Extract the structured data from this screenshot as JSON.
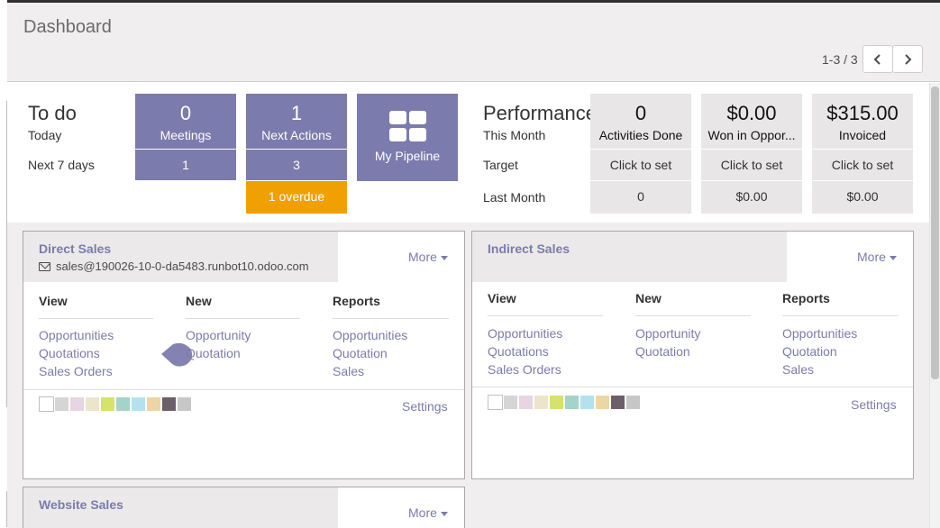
{
  "header": {
    "title": "Dashboard",
    "pager": "1-3 / 3",
    "prev_icon": "chevron-left-icon",
    "next_icon": "chevron-right-icon"
  },
  "todo": {
    "title": "To do",
    "today_label": "Today",
    "next7_label": "Next 7 days",
    "meetings": {
      "count": "0",
      "label": "Meetings",
      "next7": "1"
    },
    "next_actions": {
      "count": "1",
      "label": "Next Actions",
      "next7": "3"
    },
    "overdue": "1 overdue",
    "pipeline": {
      "label": "My Pipeline",
      "icon": "grid-icon"
    }
  },
  "performance": {
    "title": "Performance",
    "this_month_label": "This Month",
    "target_label": "Target",
    "last_month_label": "Last Month",
    "kpis": [
      {
        "value": "0",
        "label": "Activities Done",
        "target": "Click to set",
        "last_month": "0"
      },
      {
        "value": "$0.00",
        "label": "Won in Oppor...",
        "target": "Click to set",
        "last_month": "$0.00"
      },
      {
        "value": "$315.00",
        "label": "Invoiced",
        "target": "Click to set",
        "last_month": "$0.00"
      }
    ]
  },
  "cards": {
    "direct": {
      "name": "Direct Sales",
      "email": "sales@190026-10-0-da5483.runbot10.odoo.com",
      "more": "More",
      "view_h": "View",
      "new_h": "New",
      "reports_h": "Reports",
      "view": [
        "Opportunities",
        "Quotations",
        "Sales Orders"
      ],
      "new": [
        "Opportunity",
        "Quotation"
      ],
      "reports": [
        "Opportunities",
        "Quotation",
        "Sales"
      ],
      "settings": "Settings"
    },
    "indirect": {
      "name": "Indirect Sales",
      "more": "More",
      "view_h": "View",
      "new_h": "New",
      "reports_h": "Reports",
      "view": [
        "Opportunities",
        "Quotations",
        "Sales Orders"
      ],
      "new": [
        "Opportunity",
        "Quotation"
      ],
      "reports": [
        "Opportunities",
        "Quotation",
        "Sales"
      ],
      "settings": "Settings"
    },
    "website": {
      "name": "Website Sales",
      "more": "More"
    }
  },
  "colors": {
    "accent": "#7c7bad",
    "overdue": "#f0a000",
    "swatches": [
      "#ffffff",
      "#d5d5d5",
      "#e8d4e2",
      "#ede5c9",
      "#d5e26b",
      "#a3d4c8",
      "#b3e2ef",
      "#ecd6a5",
      "#6b5f6a",
      "#c7c7c7"
    ]
  }
}
